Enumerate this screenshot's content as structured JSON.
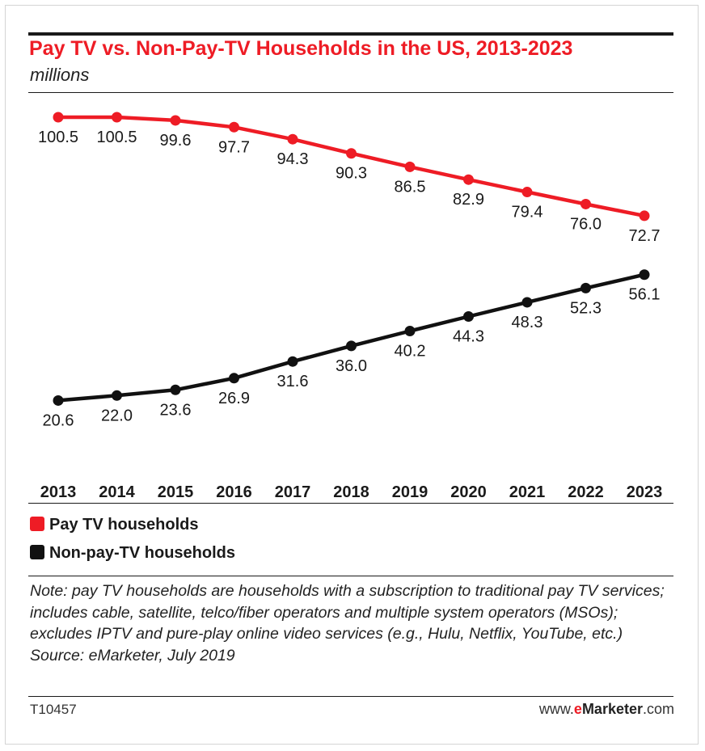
{
  "chart_data": {
    "type": "line",
    "title": "Pay TV vs. Non-Pay-TV Households in the US, 2013-2023",
    "subtitle": "millions",
    "categories": [
      "2013",
      "2014",
      "2015",
      "2016",
      "2017",
      "2018",
      "2019",
      "2020",
      "2021",
      "2022",
      "2023"
    ],
    "series": [
      {
        "name": "Pay TV households",
        "color": "#ee1c25",
        "values": [
          100.5,
          100.5,
          99.6,
          97.7,
          94.3,
          90.3,
          86.5,
          82.9,
          79.4,
          76.0,
          72.7
        ],
        "labels": [
          "100.5",
          "100.5",
          "99.6",
          "97.7",
          "94.3",
          "90.3",
          "86.5",
          "82.9",
          "79.4",
          "76.0",
          "72.7"
        ]
      },
      {
        "name": "Non-pay-TV households",
        "color": "#111111",
        "values": [
          20.6,
          22.0,
          23.6,
          26.9,
          31.6,
          36.0,
          40.2,
          44.3,
          48.3,
          52.3,
          56.1
        ],
        "labels": [
          "20.6",
          "22.0",
          "23.6",
          "26.9",
          "31.6",
          "36.0",
          "40.2",
          "44.3",
          "48.3",
          "52.3",
          "56.1"
        ]
      }
    ],
    "grid": false,
    "legend_placement": "bottom"
  },
  "legend": {
    "pay_label": "Pay TV households",
    "nonpay_label": "Non-pay-TV households",
    "pay_color": "#ee1c25",
    "nonpay_color": "#111111"
  },
  "note": "Note: pay TV households are households with a subscription to traditional pay TV services; includes cable, satellite, telco/fiber operators and multiple system operators (MSOs); excludes IPTV and pure-play online video services (e.g., Hulu, Netflix, YouTube, etc.)",
  "source": "Source: eMarketer, July 2019",
  "chart_code": "T10457",
  "brand": {
    "prefix": "www.",
    "e": "e",
    "marketer": "Marketer",
    "suffix": ".com"
  }
}
